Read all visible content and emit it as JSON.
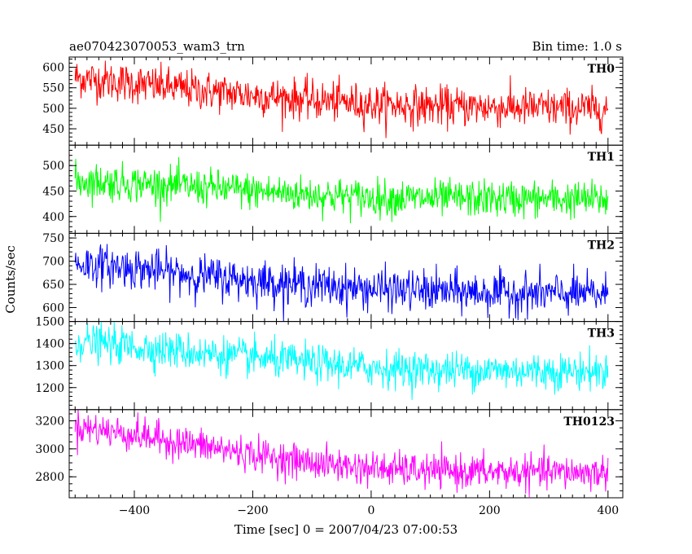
{
  "header": {
    "title": "ae070423070053_wam3_trn",
    "bin_time": "Bin time: 1.0 s"
  },
  "chart_data": {
    "type": "line",
    "xlabel": "Time [sec] 0 = 2007/04/23 07:00:53",
    "ylabel": "Counts/sec",
    "xlim": [
      -510,
      425
    ],
    "x_ticks": [
      -400,
      -200,
      0,
      200,
      400
    ],
    "x_minor_step": 20,
    "bin_time": 1.0,
    "x_range": [
      -500,
      400
    ],
    "panels": [
      {
        "name": "TH0",
        "color": "#ff0000",
        "ylim": [
          410,
          625
        ],
        "y_ticks": [
          450,
          500,
          550,
          600
        ],
        "y_minor_step": 10,
        "trend": {
          "x": [
            -500,
            -400,
            -300,
            -200,
            -100,
            0,
            100,
            200,
            300,
            400
          ],
          "y": [
            575,
            560,
            545,
            532,
            520,
            510,
            505,
            503,
            500,
            498
          ]
        },
        "noise_sd": 24
      },
      {
        "name": "TH1",
        "color": "#00ff00",
        "ylim": [
          367,
          540
        ],
        "y_ticks": [
          400,
          450,
          500
        ],
        "y_minor_step": 10,
        "trend": {
          "x": [
            -500,
            -400,
            -300,
            -200,
            -100,
            0,
            100,
            200,
            300,
            400
          ],
          "y": [
            470,
            465,
            458,
            450,
            443,
            437,
            435,
            435,
            434,
            433
          ]
        },
        "noise_sd": 18
      },
      {
        "name": "TH2",
        "color": "#0000ff",
        "ylim": [
          570,
          760
        ],
        "y_ticks": [
          600,
          650,
          700,
          750
        ],
        "y_minor_step": 10,
        "trend": {
          "x": [
            -500,
            -400,
            -300,
            -200,
            -100,
            0,
            100,
            200,
            300,
            400
          ],
          "y": [
            695,
            685,
            670,
            658,
            648,
            640,
            635,
            632,
            630,
            628
          ]
        },
        "noise_sd": 22
      },
      {
        "name": "TH3",
        "color": "#00ffff",
        "ylim": [
          1100,
          1500
        ],
        "y_ticks": [
          1200,
          1300,
          1400,
          1500
        ],
        "y_minor_step": 20,
        "trend": {
          "x": [
            -500,
            -400,
            -300,
            -200,
            -100,
            0,
            100,
            200,
            300,
            400
          ],
          "y": [
            1410,
            1385,
            1360,
            1335,
            1310,
            1290,
            1280,
            1278,
            1275,
            1272
          ]
        },
        "noise_sd": 42
      },
      {
        "name": "TH0123",
        "color": "#ff00ff",
        "ylim": [
          2650,
          3280
        ],
        "y_ticks": [
          2800,
          3000,
          3200
        ],
        "y_minor_step": 50,
        "trend": {
          "x": [
            -500,
            -400,
            -300,
            -200,
            -100,
            0,
            100,
            200,
            300,
            400
          ],
          "y": [
            3160,
            3100,
            3030,
            2960,
            2900,
            2860,
            2840,
            2835,
            2832,
            2830
          ]
        },
        "noise_sd": 60
      }
    ]
  }
}
